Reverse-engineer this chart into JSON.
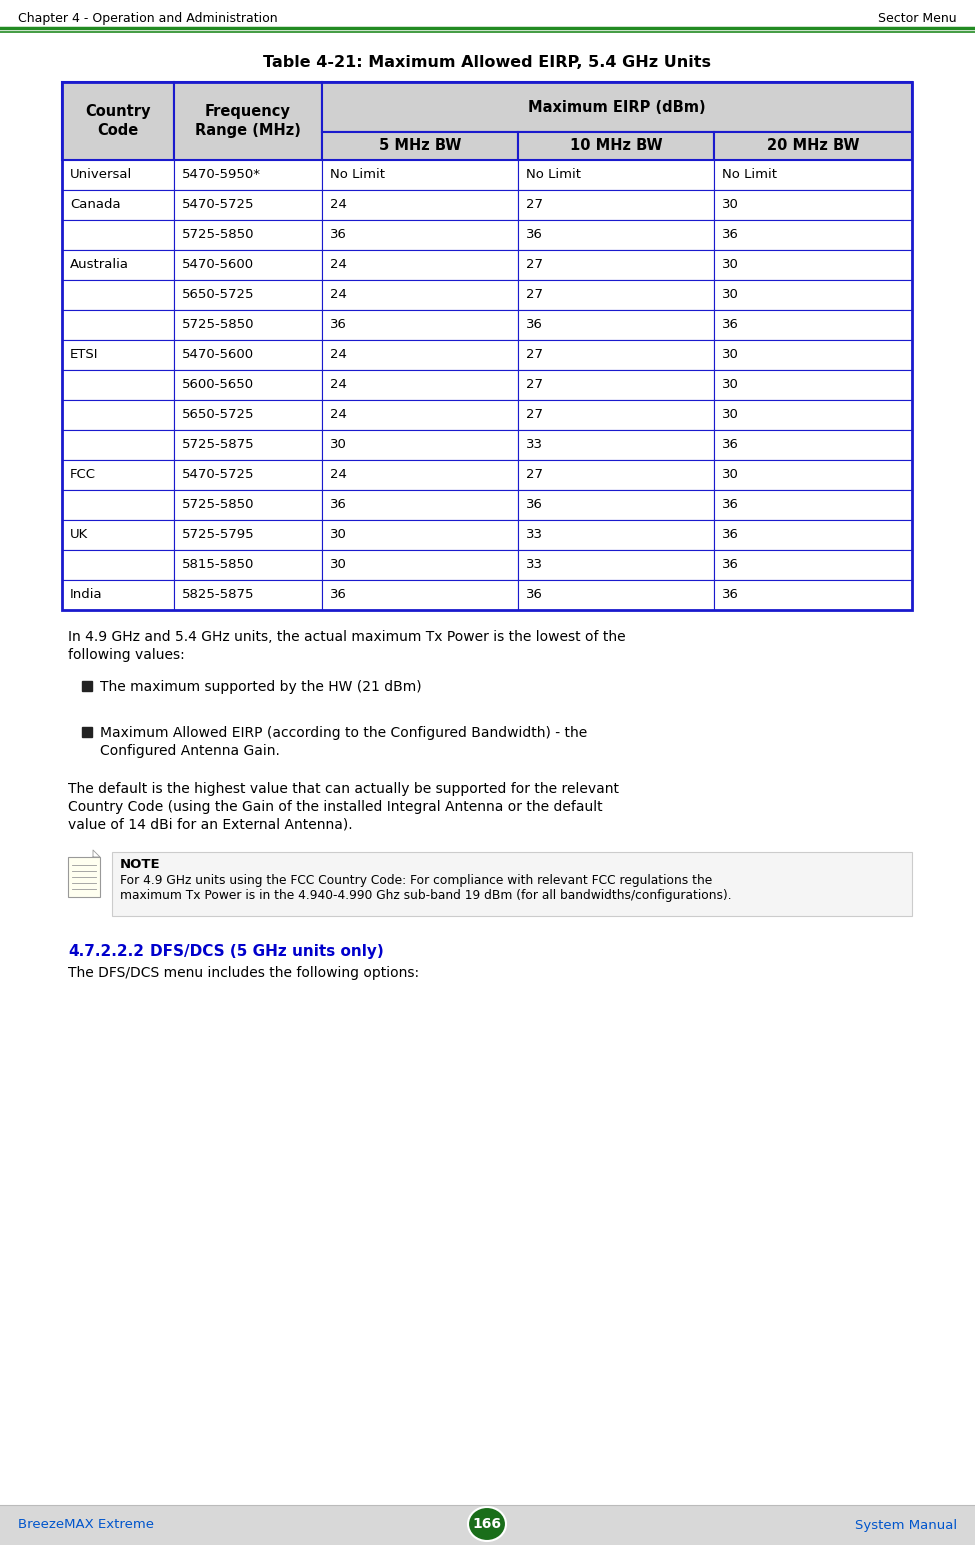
{
  "header_left": "Chapter 4 - Operation and Administration",
  "header_right": "Sector Menu",
  "footer_left": "BreezeMAX Extreme",
  "footer_center": "166",
  "footer_right": "System Manual",
  "table_title": "Table 4-21: Maximum Allowed EIRP, 5.4 GHz Units",
  "col_header_span": "Maximum EIRP (dBm)",
  "col_subheaders": [
    "5 MHz BW",
    "10 MHz BW",
    "20 MHz BW"
  ],
  "table_rows": [
    [
      "Universal",
      "5470-5950*",
      "No Limit",
      "No Limit",
      "No Limit"
    ],
    [
      "Canada",
      "5470-5725",
      "24",
      "27",
      "30"
    ],
    [
      "",
      "5725-5850",
      "36",
      "36",
      "36"
    ],
    [
      "Australia",
      "5470-5600",
      "24",
      "27",
      "30"
    ],
    [
      "",
      "5650-5725",
      "24",
      "27",
      "30"
    ],
    [
      "",
      "5725-5850",
      "36",
      "36",
      "36"
    ],
    [
      "ETSI",
      "5470-5600",
      "24",
      "27",
      "30"
    ],
    [
      "",
      "5600-5650",
      "24",
      "27",
      "30"
    ],
    [
      "",
      "5650-5725",
      "24",
      "27",
      "30"
    ],
    [
      "",
      "5725-5875",
      "30",
      "33",
      "36"
    ],
    [
      "FCC",
      "5470-5725",
      "24",
      "27",
      "30"
    ],
    [
      "",
      "5725-5850",
      "36",
      "36",
      "36"
    ],
    [
      "UK",
      "5725-5795",
      "30",
      "33",
      "36"
    ],
    [
      "",
      "5815-5850",
      "30",
      "33",
      "36"
    ],
    [
      "India",
      "5825-5875",
      "36",
      "36",
      "36"
    ]
  ],
  "body_text1_line1": "In 4.9 GHz and 5.4 GHz units, the actual maximum Tx Power is the lowest of the",
  "body_text1_line2": "following values:",
  "bullet1": "The maximum supported by the HW (21 dBm)",
  "bullet2_line1": "Maximum Allowed EIRP (according to the Configured Bandwidth) - the",
  "bullet2_line2": "Configured Antenna Gain.",
  "body_text2_line1": "The default is the highest value that can actually be supported for the relevant",
  "body_text2_line2": "Country Code (using the Gain of the installed Integral Antenna or the default",
  "body_text2_line3": "value of 14 dBi for an External Antenna).",
  "note_label": "NOTE",
  "note_text_line1": "For 4.9 GHz units using the FCC Country Code: For compliance with relevant FCC regulations the",
  "note_text_line2": "maximum Tx Power is in the 4.940-4.990 Ghz sub-band 19 dBm (for all bandwidths/configurations).",
  "section_heading_num": "4.7.2.2.2",
  "section_heading_title": "DFS/DCS (5 GHz units only)",
  "section_text": "The DFS/DCS menu includes the following options:",
  "header_line_color": "#228B22",
  "table_border_color": "#1a1acd",
  "table_header_bg": "#d0d0d0",
  "section_heading_color": "#0000CC",
  "footer_bg": "#d8d8d8",
  "footer_text_color": "#0055cc",
  "page_bg": "#FFFFFF",
  "note_bg": "#f5f5f5",
  "note_border": "#cccccc"
}
